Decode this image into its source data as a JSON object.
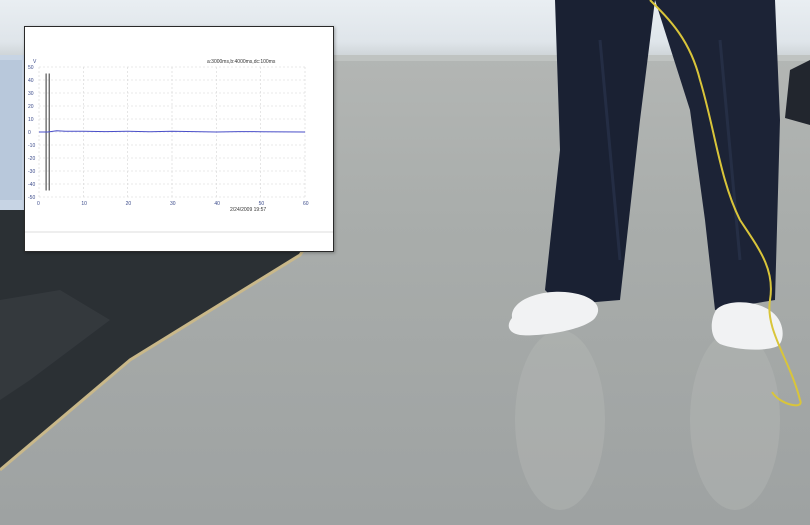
{
  "scene": {
    "description_colors": {
      "wall": "#e5eaee",
      "floor": "#a8acab",
      "dark_floor": "#2a2f33",
      "trousers": "#1c2233",
      "shoes": "#f2f3f4",
      "cable": "#d6c23a"
    }
  },
  "chart_data": {
    "type": "line",
    "info_text": "a:3000ms,b:4000ms,dc:100ms",
    "y_unit": "V",
    "x_ticks": [
      "0",
      "10",
      "20",
      "30",
      "40",
      "50",
      "60"
    ],
    "y_ticks": [
      "50",
      "40",
      "30",
      "20",
      "10",
      "0",
      "-10",
      "-20",
      "-30",
      "-40",
      "-50"
    ],
    "xlim": [
      0,
      60
    ],
    "ylim": [
      -50,
      50
    ],
    "grid": true,
    "date_label": "2/24/2009 19:57",
    "series": [
      {
        "color": "#4a4fc9",
        "x": [
          0,
          2,
          4,
          6,
          10,
          15,
          20,
          25,
          30,
          35,
          40,
          45,
          50,
          55,
          60
        ],
        "y": [
          0,
          0,
          1,
          0.5,
          0.5,
          0.3,
          0.5,
          0.2,
          0.5,
          0.3,
          0,
          0.3,
          0.2,
          0.1,
          0
        ]
      }
    ]
  }
}
